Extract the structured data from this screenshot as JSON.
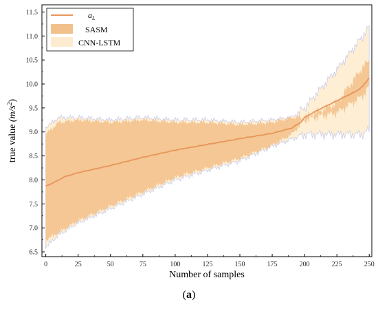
{
  "chart_data": {
    "type": "line",
    "xlabel": "Number of samples",
    "ylabel": "true value",
    "ylabel_unit": "(m/s",
    "ylabel_exp": "2",
    "ylabel_close": ")",
    "xlim": [
      -3,
      252
    ],
    "ylim": [
      6.4,
      11.65
    ],
    "xticks": [
      0,
      25,
      50,
      75,
      100,
      125,
      150,
      175,
      200,
      225,
      250
    ],
    "yticks": [
      6.5,
      7.0,
      7.5,
      8.0,
      8.5,
      9.0,
      9.5,
      10.0,
      10.5,
      11.0,
      11.5
    ],
    "legend_position": "top-left",
    "series": [
      {
        "name": "a",
        "name_sub": "L",
        "kind": "line",
        "color": "#e8955a",
        "x": [
          0,
          5,
          10,
          15,
          25,
          50,
          75,
          100,
          125,
          150,
          175,
          190,
          197,
          200,
          210,
          225,
          240,
          245,
          250
        ],
        "y": [
          7.87,
          7.93,
          8.0,
          8.07,
          8.15,
          8.3,
          8.47,
          8.62,
          8.74,
          8.86,
          8.97,
          9.08,
          9.2,
          9.3,
          9.45,
          9.65,
          9.85,
          9.95,
          10.13
        ]
      },
      {
        "name": "SASM",
        "kind": "band",
        "color": "#f2c08a",
        "x": [
          0,
          10,
          25,
          50,
          75,
          100,
          125,
          150,
          175,
          190,
          200,
          225,
          245,
          250
        ],
        "low": [
          6.75,
          6.9,
          7.15,
          7.45,
          7.75,
          8.05,
          8.25,
          8.45,
          8.72,
          8.95,
          9.25,
          9.4,
          9.75,
          9.95
        ],
        "high": [
          8.95,
          9.2,
          9.25,
          9.2,
          9.25,
          9.2,
          9.2,
          9.15,
          9.2,
          9.3,
          9.3,
          9.6,
          10.35,
          10.5
        ]
      },
      {
        "name": "CNN-LSTM",
        "kind": "band",
        "color": "#fdeccf",
        "edge_color": "#aab4f0",
        "x": [
          0,
          10,
          25,
          50,
          75,
          100,
          125,
          150,
          175,
          190,
          200,
          225,
          245,
          250
        ],
        "low": [
          6.6,
          6.85,
          7.1,
          7.4,
          7.7,
          8.0,
          8.2,
          8.4,
          8.7,
          8.85,
          8.95,
          8.95,
          8.95,
          9.05
        ],
        "high": [
          9.1,
          9.3,
          9.3,
          9.25,
          9.3,
          9.25,
          9.25,
          9.2,
          9.25,
          9.3,
          9.5,
          10.3,
          11.0,
          11.2
        ]
      }
    ],
    "caption": "(a)"
  }
}
